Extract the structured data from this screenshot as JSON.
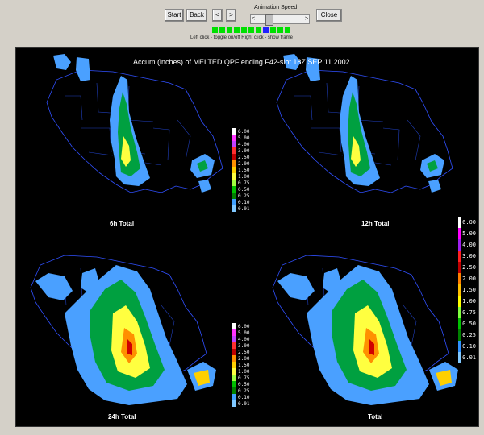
{
  "toolbar": {
    "start_label": "Start",
    "back_label": "Back",
    "step_back_label": "<",
    "step_fwd_label": ">",
    "speed_label": "Animation Speed",
    "slider_left": "<",
    "slider_right": ">",
    "close_label": "Close",
    "frame_count": 11,
    "current_frame": 7,
    "hint": "Left click - toggle on/off  Right click - show frame"
  },
  "display": {
    "title": "Accum (inches) of MELTED QPF ending F42-slot 18Z SEP 11 2002",
    "panels": [
      {
        "label": "6h Total"
      },
      {
        "label": "12h Total"
      },
      {
        "label": "24h Total"
      },
      {
        "label": "Total"
      }
    ],
    "legend_values": [
      "6.00",
      "5.00",
      "4.00",
      "3.00",
      "2.50",
      "2.00",
      "1.50",
      "1.00",
      "0.75",
      "0.50",
      "0.25",
      "0.10",
      "0.01"
    ],
    "legend_colors": [
      "#ffffff",
      "#ff33ff",
      "#c040ff",
      "#ff3030",
      "#c00000",
      "#ff9000",
      "#ffd000",
      "#ffff40",
      "#a0ff40",
      "#00c000",
      "#008000",
      "#40a0ff",
      "#80c8ff"
    ],
    "legend_big_values": [
      "6.00",
      "5.00",
      "4.00",
      "3.00",
      "2.50",
      "2.00",
      "1.50",
      "1.00",
      "0.75",
      "0.50",
      "0.25",
      "0.10",
      "0.01"
    ],
    "legend_big_colors": [
      "#ffffff",
      "#ff00ff",
      "#a020f0",
      "#ff2020",
      "#c00000",
      "#ff8000",
      "#ffc000",
      "#ffff00",
      "#80ff40",
      "#00c000",
      "#008000",
      "#3090ff",
      "#80c8ff"
    ]
  }
}
